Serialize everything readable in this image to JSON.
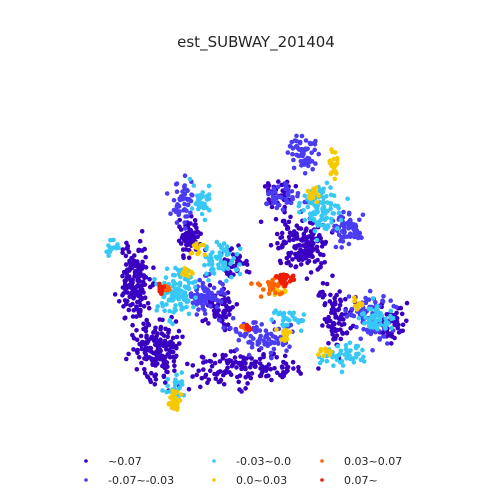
{
  "chart_data": {
    "type": "scatter",
    "title": "est_SUBWAY_201404",
    "xlabel": "",
    "ylabel": "",
    "axes_visible": false,
    "grid": false,
    "legend_position": "bottom",
    "series": [
      {
        "name": "~0.07",
        "color": "#3a00c2",
        "regions": [
          [
            -0.82,
            -0.02,
            0.1,
            0.26,
            170
          ],
          [
            -0.68,
            -0.55,
            0.14,
            0.22,
            170
          ],
          [
            -0.45,
            0.35,
            0.07,
            0.14,
            70
          ],
          [
            -0.1,
            -0.7,
            0.35,
            0.12,
            150
          ],
          [
            0.32,
            0.28,
            0.18,
            0.22,
            160
          ],
          [
            0.15,
            0.68,
            0.09,
            0.1,
            40
          ],
          [
            0.55,
            -0.3,
            0.1,
            0.2,
            80
          ],
          [
            -0.25,
            -0.22,
            0.1,
            0.14,
            70
          ],
          [
            0.9,
            -0.35,
            0.12,
            0.12,
            50
          ],
          [
            -0.15,
            0.15,
            0.1,
            0.12,
            40
          ]
        ]
      },
      {
        "name": "-0.07~-0.03",
        "color": "#4a3cf2",
        "regions": [
          [
            -0.5,
            0.6,
            0.07,
            0.14,
            50
          ],
          [
            0.32,
            0.98,
            0.08,
            0.12,
            60
          ],
          [
            0.62,
            0.4,
            0.1,
            0.12,
            60
          ],
          [
            0.78,
            -0.3,
            0.14,
            0.18,
            80
          ],
          [
            -0.35,
            -0.12,
            0.12,
            0.14,
            70
          ],
          [
            0.05,
            -0.45,
            0.22,
            0.12,
            80
          ],
          [
            0.2,
            0.65,
            0.12,
            0.1,
            40
          ]
        ]
      },
      {
        "name": "-0.03~0.0",
        "color": "#38c8f5",
        "regions": [
          [
            -0.55,
            -0.1,
            0.12,
            0.16,
            100
          ],
          [
            -0.25,
            0.15,
            0.12,
            0.14,
            60
          ],
          [
            0.45,
            0.55,
            0.12,
            0.14,
            100
          ],
          [
            0.82,
            -0.3,
            0.1,
            0.1,
            50
          ],
          [
            -1.0,
            0.25,
            0.05,
            0.05,
            15
          ],
          [
            0.6,
            -0.6,
            0.14,
            0.08,
            50
          ],
          [
            -0.55,
            -0.85,
            0.06,
            0.08,
            25
          ],
          [
            -0.38,
            0.62,
            0.06,
            0.12,
            30
          ],
          [
            0.25,
            -0.3,
            0.1,
            0.07,
            30
          ]
        ]
      },
      {
        "name": "0.0~0.03",
        "color": "#f5c800",
        "regions": [
          [
            -0.55,
            -0.95,
            0.04,
            0.08,
            30
          ],
          [
            0.52,
            0.92,
            0.04,
            0.1,
            25
          ],
          [
            0.38,
            0.68,
            0.04,
            0.05,
            15
          ],
          [
            -0.48,
            0.06,
            0.04,
            0.04,
            12
          ],
          [
            -0.4,
            0.24,
            0.04,
            0.05,
            12
          ],
          [
            0.7,
            -0.2,
            0.03,
            0.05,
            10
          ],
          [
            0.2,
            -0.42,
            0.05,
            0.06,
            15
          ],
          [
            0.48,
            -0.55,
            0.04,
            0.04,
            10
          ],
          [
            0.15,
            -0.08,
            0.05,
            0.05,
            14
          ]
        ]
      },
      {
        "name": "0.03~0.07",
        "color": "#ff6400",
        "regions": [
          [
            0.1,
            -0.05,
            0.08,
            0.06,
            30
          ],
          [
            -0.62,
            -0.07,
            0.03,
            0.03,
            10
          ],
          [
            -0.08,
            -0.38,
            0.03,
            0.03,
            8
          ]
        ]
      },
      {
        "name": "0.07~",
        "color": "#ee1c00",
        "regions": [
          [
            0.2,
            0.0,
            0.06,
            0.05,
            25
          ],
          [
            -0.65,
            -0.07,
            0.03,
            0.03,
            10
          ],
          [
            -0.05,
            -0.37,
            0.02,
            0.02,
            6
          ]
        ]
      }
    ],
    "xlim": [
      -1.15,
      1.15
    ],
    "ylim": [
      -1.1,
      1.45
    ]
  }
}
